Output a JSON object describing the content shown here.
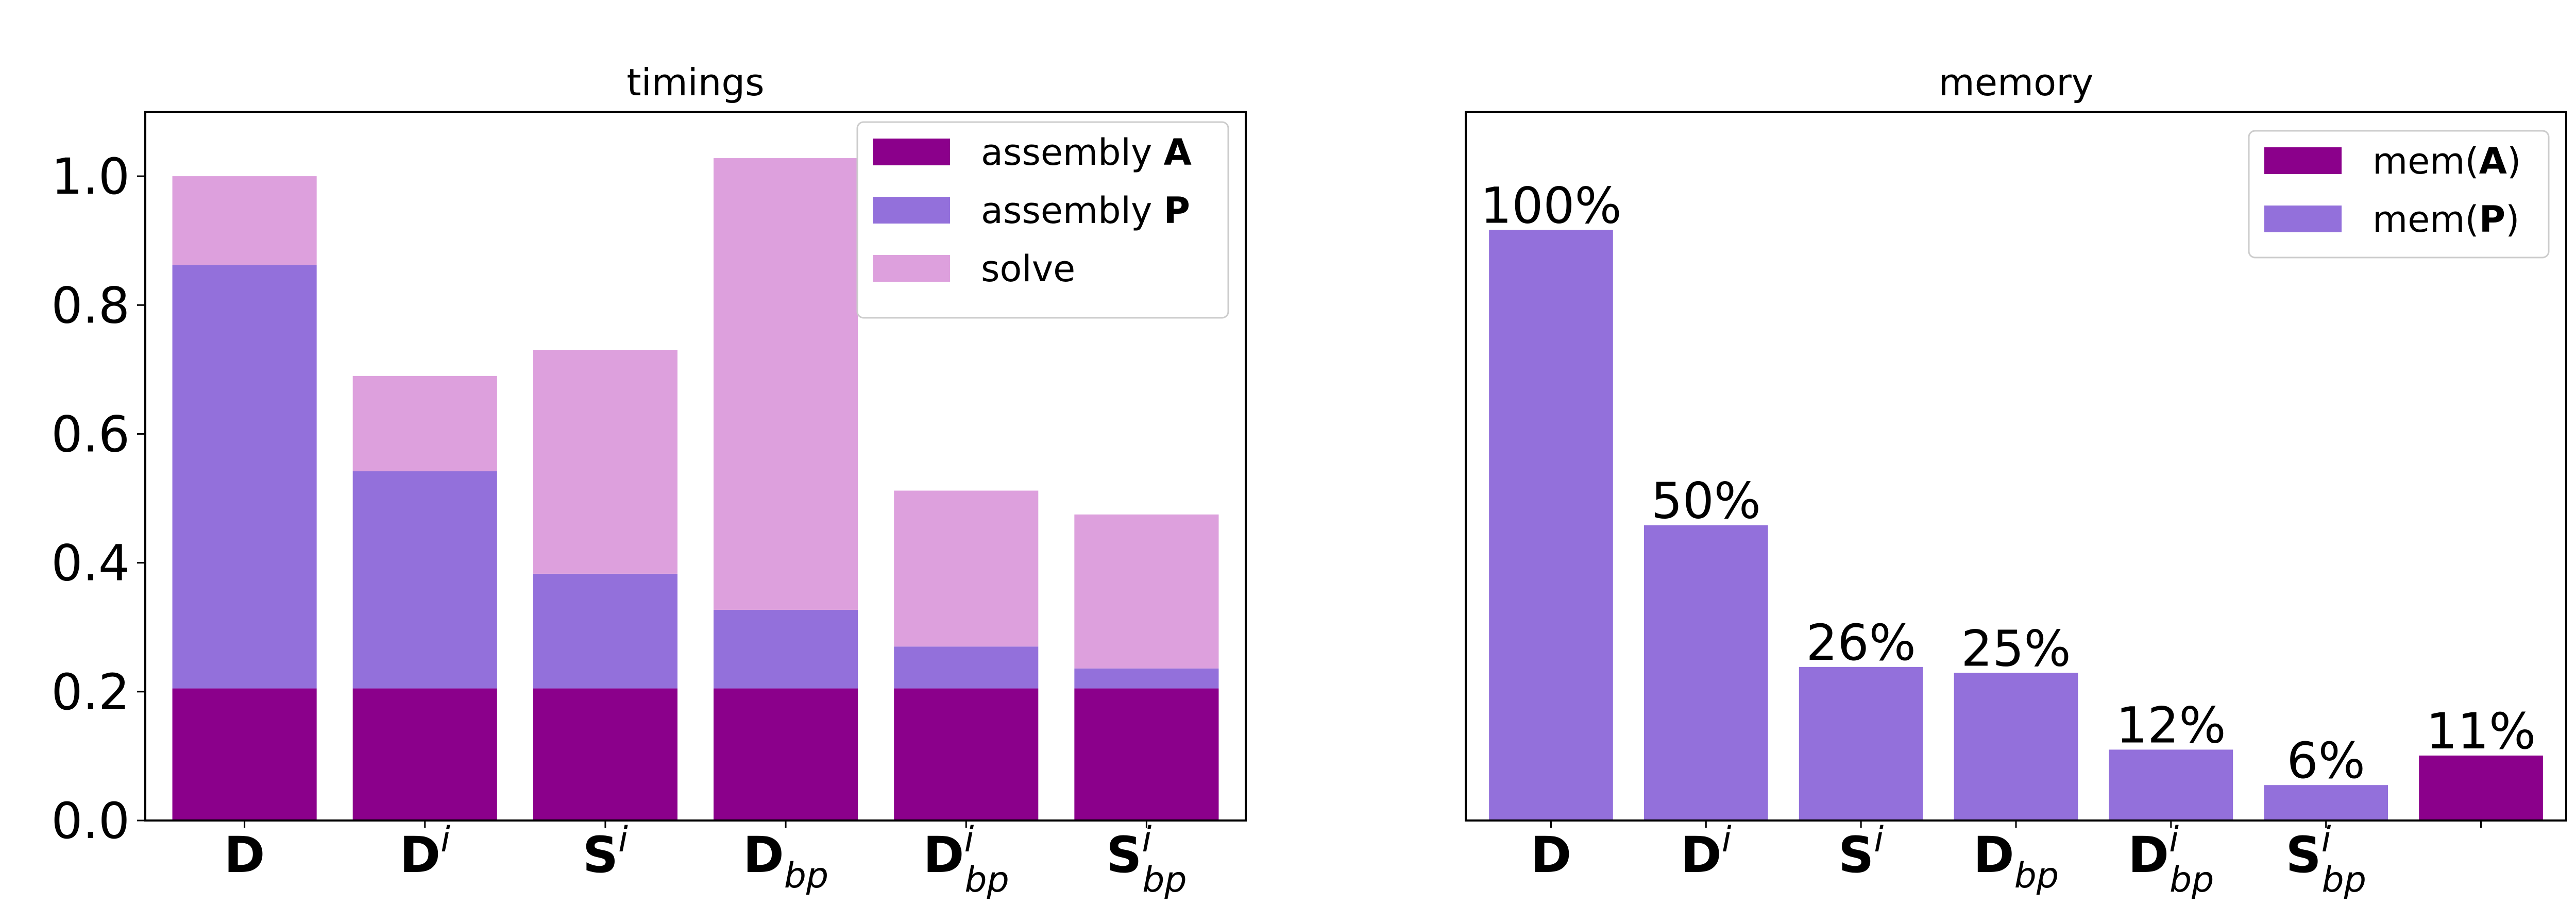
{
  "colors": {
    "assembly_A": "#8B008B",
    "assembly_P": "#9370DB",
    "solve": "#DDA0DD",
    "axis": "#000000",
    "background": "#ffffff"
  },
  "chart_data": [
    {
      "type": "bar",
      "stacked": true,
      "title": "timings",
      "categories": [
        {
          "base": "D",
          "sup": "",
          "sub": ""
        },
        {
          "base": "D",
          "sup": "i",
          "sub": ""
        },
        {
          "base": "S",
          "sup": "i",
          "sub": ""
        },
        {
          "base": "D",
          "sup": "",
          "sub": "bp"
        },
        {
          "base": "D",
          "sup": "i",
          "sub": "bp"
        },
        {
          "base": "S",
          "sup": "i",
          "sub": "bp"
        }
      ],
      "series": [
        {
          "name_prefix": "assembly ",
          "name_bold": "A",
          "color_key": "assembly_A",
          "values": [
            0.205,
            0.205,
            0.205,
            0.205,
            0.205,
            0.205
          ]
        },
        {
          "name_prefix": "assembly ",
          "name_bold": "P",
          "color_key": "assembly_P",
          "values": [
            0.657,
            0.337,
            0.178,
            0.122,
            0.065,
            0.031
          ]
        },
        {
          "name_prefix": "solve",
          "name_bold": "",
          "color_key": "solve",
          "values": [
            0.138,
            0.148,
            0.347,
            0.701,
            0.242,
            0.239
          ]
        }
      ],
      "ylim": [
        0,
        1.1
      ],
      "yticks": [
        "0.0",
        "0.2",
        "0.4",
        "0.6",
        "0.8",
        "1.0"
      ],
      "legend_position": "top-right",
      "grid": false
    },
    {
      "type": "bar",
      "title": "memory",
      "categories": [
        {
          "base": "D",
          "sup": "",
          "sub": ""
        },
        {
          "base": "D",
          "sup": "i",
          "sub": ""
        },
        {
          "base": "S",
          "sup": "i",
          "sub": ""
        },
        {
          "base": "D",
          "sup": "",
          "sub": "bp"
        },
        {
          "base": "D",
          "sup": "i",
          "sub": "bp"
        },
        {
          "base": "S",
          "sup": "i",
          "sub": "bp"
        },
        {
          "base": "",
          "sup": "",
          "sub": ""
        }
      ],
      "bars": [
        {
          "value": 100,
          "label": "100%",
          "series": 1
        },
        {
          "value": 50,
          "label": "50%",
          "series": 1
        },
        {
          "value": 26,
          "label": "26%",
          "series": 1
        },
        {
          "value": 25,
          "label": "25%",
          "series": 1
        },
        {
          "value": 12,
          "label": "12%",
          "series": 1
        },
        {
          "value": 6,
          "label": "6%",
          "series": 1
        },
        {
          "value": 11,
          "label": "11%",
          "series": 0
        }
      ],
      "series": [
        {
          "name_prefix": "mem(",
          "name_bold": "A",
          "name_suffix": ")",
          "color_key": "assembly_A"
        },
        {
          "name_prefix": "mem(",
          "name_bold": "P",
          "name_suffix": ")",
          "color_key": "assembly_P"
        }
      ],
      "ylim": [
        0,
        120
      ],
      "yticks": [],
      "legend_position": "top-right",
      "grid": false
    }
  ]
}
